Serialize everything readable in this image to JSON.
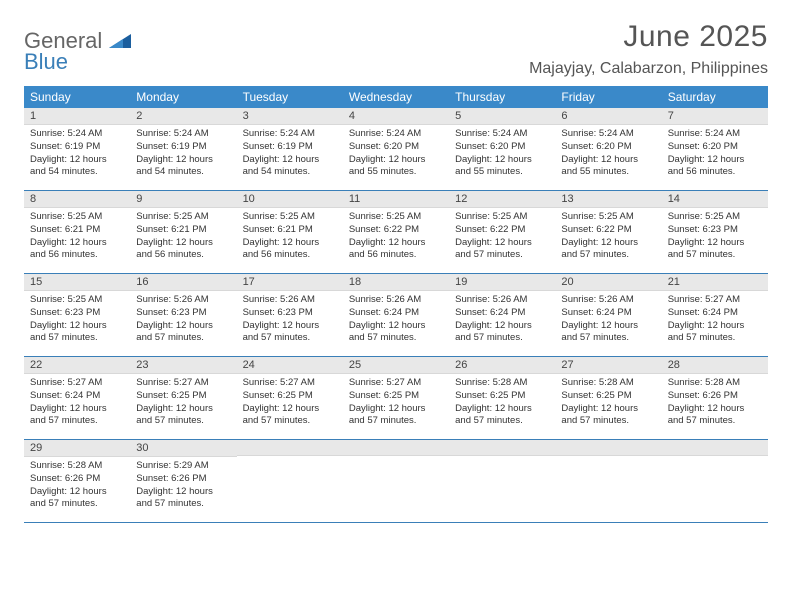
{
  "logo": {
    "line1": "General",
    "line2": "Blue"
  },
  "title": "June 2025",
  "location": "Majayjay, Calabarzon, Philippines",
  "colors": {
    "header_bg": "#3a89c9",
    "header_text": "#ffffff",
    "daynum_bg": "#e8e8e8",
    "rule": "#3a7fb8",
    "text": "#333333",
    "title_text": "#555555"
  },
  "days_of_week": [
    "Sunday",
    "Monday",
    "Tuesday",
    "Wednesday",
    "Thursday",
    "Friday",
    "Saturday"
  ],
  "weeks": [
    [
      {
        "n": "1",
        "sunrise": "5:24 AM",
        "sunset": "6:19 PM",
        "daylight": "12 hours and 54 minutes."
      },
      {
        "n": "2",
        "sunrise": "5:24 AM",
        "sunset": "6:19 PM",
        "daylight": "12 hours and 54 minutes."
      },
      {
        "n": "3",
        "sunrise": "5:24 AM",
        "sunset": "6:19 PM",
        "daylight": "12 hours and 54 minutes."
      },
      {
        "n": "4",
        "sunrise": "5:24 AM",
        "sunset": "6:20 PM",
        "daylight": "12 hours and 55 minutes."
      },
      {
        "n": "5",
        "sunrise": "5:24 AM",
        "sunset": "6:20 PM",
        "daylight": "12 hours and 55 minutes."
      },
      {
        "n": "6",
        "sunrise": "5:24 AM",
        "sunset": "6:20 PM",
        "daylight": "12 hours and 55 minutes."
      },
      {
        "n": "7",
        "sunrise": "5:24 AM",
        "sunset": "6:20 PM",
        "daylight": "12 hours and 56 minutes."
      }
    ],
    [
      {
        "n": "8",
        "sunrise": "5:25 AM",
        "sunset": "6:21 PM",
        "daylight": "12 hours and 56 minutes."
      },
      {
        "n": "9",
        "sunrise": "5:25 AM",
        "sunset": "6:21 PM",
        "daylight": "12 hours and 56 minutes."
      },
      {
        "n": "10",
        "sunrise": "5:25 AM",
        "sunset": "6:21 PM",
        "daylight": "12 hours and 56 minutes."
      },
      {
        "n": "11",
        "sunrise": "5:25 AM",
        "sunset": "6:22 PM",
        "daylight": "12 hours and 56 minutes."
      },
      {
        "n": "12",
        "sunrise": "5:25 AM",
        "sunset": "6:22 PM",
        "daylight": "12 hours and 57 minutes."
      },
      {
        "n": "13",
        "sunrise": "5:25 AM",
        "sunset": "6:22 PM",
        "daylight": "12 hours and 57 minutes."
      },
      {
        "n": "14",
        "sunrise": "5:25 AM",
        "sunset": "6:23 PM",
        "daylight": "12 hours and 57 minutes."
      }
    ],
    [
      {
        "n": "15",
        "sunrise": "5:25 AM",
        "sunset": "6:23 PM",
        "daylight": "12 hours and 57 minutes."
      },
      {
        "n": "16",
        "sunrise": "5:26 AM",
        "sunset": "6:23 PM",
        "daylight": "12 hours and 57 minutes."
      },
      {
        "n": "17",
        "sunrise": "5:26 AM",
        "sunset": "6:23 PM",
        "daylight": "12 hours and 57 minutes."
      },
      {
        "n": "18",
        "sunrise": "5:26 AM",
        "sunset": "6:24 PM",
        "daylight": "12 hours and 57 minutes."
      },
      {
        "n": "19",
        "sunrise": "5:26 AM",
        "sunset": "6:24 PM",
        "daylight": "12 hours and 57 minutes."
      },
      {
        "n": "20",
        "sunrise": "5:26 AM",
        "sunset": "6:24 PM",
        "daylight": "12 hours and 57 minutes."
      },
      {
        "n": "21",
        "sunrise": "5:27 AM",
        "sunset": "6:24 PM",
        "daylight": "12 hours and 57 minutes."
      }
    ],
    [
      {
        "n": "22",
        "sunrise": "5:27 AM",
        "sunset": "6:24 PM",
        "daylight": "12 hours and 57 minutes."
      },
      {
        "n": "23",
        "sunrise": "5:27 AM",
        "sunset": "6:25 PM",
        "daylight": "12 hours and 57 minutes."
      },
      {
        "n": "24",
        "sunrise": "5:27 AM",
        "sunset": "6:25 PM",
        "daylight": "12 hours and 57 minutes."
      },
      {
        "n": "25",
        "sunrise": "5:27 AM",
        "sunset": "6:25 PM",
        "daylight": "12 hours and 57 minutes."
      },
      {
        "n": "26",
        "sunrise": "5:28 AM",
        "sunset": "6:25 PM",
        "daylight": "12 hours and 57 minutes."
      },
      {
        "n": "27",
        "sunrise": "5:28 AM",
        "sunset": "6:25 PM",
        "daylight": "12 hours and 57 minutes."
      },
      {
        "n": "28",
        "sunrise": "5:28 AM",
        "sunset": "6:26 PM",
        "daylight": "12 hours and 57 minutes."
      }
    ],
    [
      {
        "n": "29",
        "sunrise": "5:28 AM",
        "sunset": "6:26 PM",
        "daylight": "12 hours and 57 minutes."
      },
      {
        "n": "30",
        "sunrise": "5:29 AM",
        "sunset": "6:26 PM",
        "daylight": "12 hours and 57 minutes."
      },
      null,
      null,
      null,
      null,
      null
    ]
  ],
  "labels": {
    "sunrise": "Sunrise:",
    "sunset": "Sunset:",
    "daylight": "Daylight:"
  }
}
